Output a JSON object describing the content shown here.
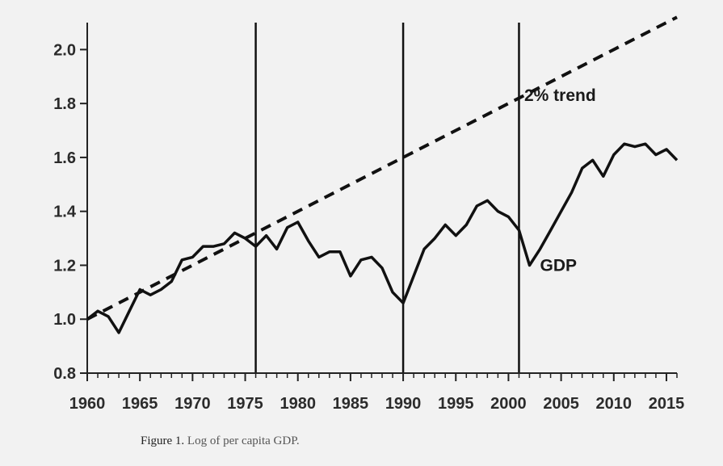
{
  "chart_data": {
    "type": "line",
    "title": "",
    "xlabel": "",
    "ylabel": "",
    "xlim": [
      1960,
      2016
    ],
    "ylim": [
      0.8,
      2.1
    ],
    "x_ticks": [
      1960,
      1965,
      1970,
      1975,
      1980,
      1985,
      1990,
      1995,
      2000,
      2005,
      2010,
      2015
    ],
    "y_ticks": [
      0.8,
      1.0,
      1.2,
      1.4,
      1.6,
      1.8,
      2.0
    ],
    "y_tick_labels": [
      "0.8",
      "1.0",
      "1.2",
      "1.4",
      "1.6",
      "1.8",
      "2.0"
    ],
    "grid": false,
    "vertical_lines": [
      1976,
      1990,
      2001
    ],
    "series": [
      {
        "name": "GDP",
        "style": "solid",
        "x": [
          1960,
          1961,
          1962,
          1963,
          1964,
          1965,
          1966,
          1967,
          1968,
          1969,
          1970,
          1971,
          1972,
          1973,
          1974,
          1975,
          1976,
          1977,
          1978,
          1979,
          1980,
          1981,
          1982,
          1983,
          1984,
          1985,
          1986,
          1987,
          1988,
          1989,
          1990,
          1991,
          1992,
          1993,
          1994,
          1995,
          1996,
          1997,
          1998,
          1999,
          2000,
          2001,
          2002,
          2003,
          2004,
          2005,
          2006,
          2007,
          2008,
          2009,
          2010,
          2011,
          2012,
          2013,
          2014,
          2015,
          2016
        ],
        "values": [
          1.0,
          1.03,
          1.01,
          0.95,
          1.03,
          1.11,
          1.09,
          1.11,
          1.14,
          1.22,
          1.23,
          1.27,
          1.27,
          1.28,
          1.32,
          1.3,
          1.27,
          1.31,
          1.26,
          1.34,
          1.36,
          1.29,
          1.23,
          1.25,
          1.25,
          1.16,
          1.22,
          1.23,
          1.19,
          1.1,
          1.06,
          1.16,
          1.26,
          1.3,
          1.35,
          1.31,
          1.35,
          1.42,
          1.44,
          1.4,
          1.38,
          1.33,
          1.2,
          1.26,
          1.33,
          1.4,
          1.47,
          1.56,
          1.59,
          1.53,
          1.61,
          1.65,
          1.64,
          1.65,
          1.61,
          1.63,
          1.59
        ]
      },
      {
        "name": "2% trend",
        "style": "dashed",
        "x": [
          1960,
          2016
        ],
        "values": [
          1.0,
          2.12
        ]
      }
    ],
    "annotations": [
      {
        "text": "2% trend",
        "x": 2001.5,
        "y": 1.83
      },
      {
        "text": "GDP",
        "x": 2003,
        "y": 1.2
      }
    ]
  },
  "caption": {
    "label": "Figure 1.",
    "text": "Log of per capita GDP."
  }
}
